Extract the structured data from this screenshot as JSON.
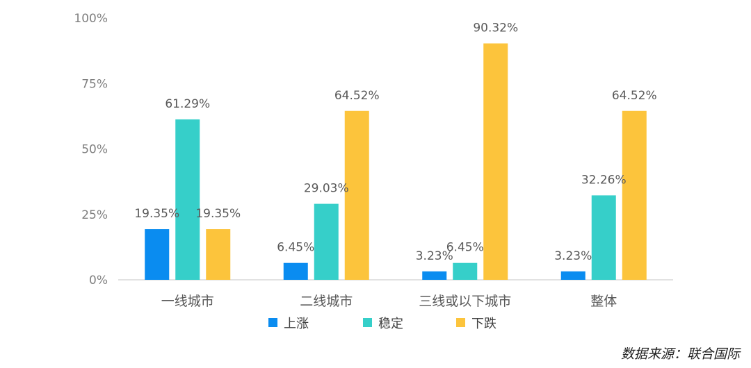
{
  "chart_data": {
    "type": "bar",
    "categories": [
      "一线城市",
      "二线城市",
      "三线或以下城市",
      "整体"
    ],
    "series": [
      {
        "name": "上涨",
        "color": "#0a8cf0",
        "values": [
          19.35,
          6.45,
          3.23,
          3.23
        ],
        "labels": [
          "19.35%",
          "6.45%",
          "3.23%",
          "3.23%"
        ]
      },
      {
        "name": "稳定",
        "color": "#36cfc9",
        "values": [
          61.29,
          29.03,
          6.45,
          32.26
        ],
        "labels": [
          "61.29%",
          "29.03%",
          "6.45%",
          "32.26%"
        ]
      },
      {
        "name": "下跌",
        "color": "#fcc43c",
        "values": [
          19.35,
          64.52,
          90.32,
          64.52
        ],
        "labels": [
          "19.35%",
          "64.52%",
          "90.32%",
          "64.52%"
        ]
      }
    ],
    "yticks": [
      0,
      25,
      50,
      75,
      100
    ],
    "ytick_labels": [
      "0%",
      "25%",
      "50%",
      "75%",
      "100%"
    ],
    "ylim": [
      0,
      100
    ],
    "legend_position": "bottom",
    "grid": false
  },
  "source_text": "数据来源：联合国际"
}
